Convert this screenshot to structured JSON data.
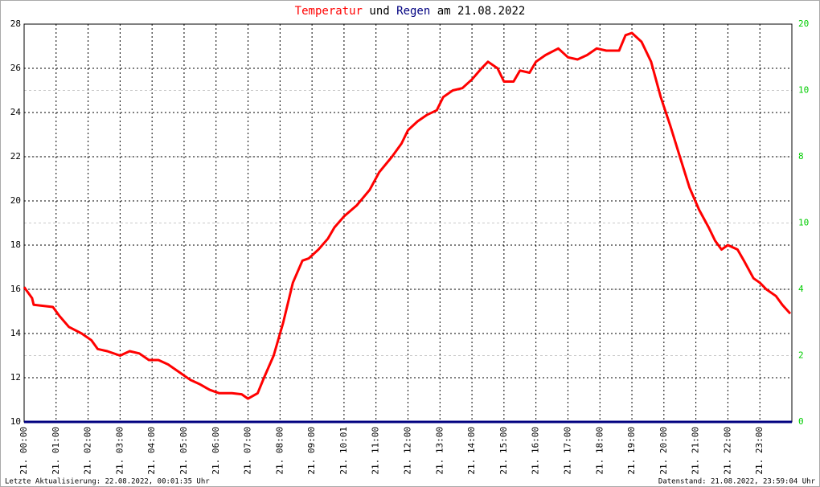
{
  "chart_data": {
    "type": "line",
    "title_parts": [
      {
        "text": "Temperatur",
        "color": "#ff0000"
      },
      {
        "text": "und",
        "color": "#000000"
      },
      {
        "text": "Regen",
        "color": "#000080"
      },
      {
        "text": "am 21.08.2022",
        "color": "#000000"
      }
    ],
    "xlim": [
      0,
      24
    ],
    "xticks": [
      {
        "value": 0,
        "label": "21. 00:00"
      },
      {
        "value": 1,
        "label": "21. 01:00"
      },
      {
        "value": 2,
        "label": "21. 02:00"
      },
      {
        "value": 3,
        "label": "21. 03:00"
      },
      {
        "value": 4,
        "label": "21. 04:00"
      },
      {
        "value": 5,
        "label": "21. 05:00"
      },
      {
        "value": 6,
        "label": "21. 06:00"
      },
      {
        "value": 7,
        "label": "21. 07:00"
      },
      {
        "value": 8,
        "label": "21. 08:00"
      },
      {
        "value": 9,
        "label": "21. 09:00"
      },
      {
        "value": 10,
        "label": "21. 10:01"
      },
      {
        "value": 11,
        "label": "21. 11:00"
      },
      {
        "value": 12,
        "label": "21. 12:00"
      },
      {
        "value": 13,
        "label": "21. 13:00"
      },
      {
        "value": 14,
        "label": "21. 14:00"
      },
      {
        "value": 15,
        "label": "21. 15:00"
      },
      {
        "value": 16,
        "label": "21. 16:00"
      },
      {
        "value": 17,
        "label": "21. 17:00"
      },
      {
        "value": 18,
        "label": "21. 18:00"
      },
      {
        "value": 19,
        "label": "21. 19:00"
      },
      {
        "value": 20,
        "label": "21. 20:00"
      },
      {
        "value": 21,
        "label": "21. 21:00"
      },
      {
        "value": 22,
        "label": "21. 22:00"
      },
      {
        "value": 23,
        "label": "21. 23:00"
      }
    ],
    "ylim": [
      10,
      28
    ],
    "yticks": [
      10,
      12,
      14,
      16,
      18,
      20,
      22,
      24,
      26,
      28
    ],
    "y2lim": [
      0,
      20
    ],
    "y2_labels": [
      "0",
      "2",
      "4",
      "10",
      "8",
      "10",
      "20"
    ],
    "y2_label_color": "#00cc00",
    "grid": true,
    "series": [
      {
        "name": "Temperatur",
        "color": "#ff0000",
        "x": [
          0,
          0.25,
          0.3,
          0.6,
          0.9,
          1.1,
          1.4,
          1.8,
          2.1,
          2.3,
          2.6,
          3.0,
          3.3,
          3.6,
          3.9,
          4.2,
          4.5,
          4.9,
          5.2,
          5.5,
          5.8,
          6.1,
          6.5,
          6.8,
          7.0,
          7.3,
          7.5,
          7.8,
          8.1,
          8.4,
          8.7,
          8.9,
          9.2,
          9.5,
          9.7,
          10.0,
          10.4,
          10.8,
          11.1,
          11.5,
          11.8,
          12.0,
          12.3,
          12.6,
          12.9,
          13.1,
          13.4,
          13.7,
          14.0,
          14.3,
          14.5,
          14.8,
          15.0,
          15.3,
          15.5,
          15.8,
          16.0,
          16.3,
          16.7,
          17.0,
          17.3,
          17.6,
          17.9,
          18.2,
          18.6,
          18.8,
          19.0,
          19.3,
          19.6,
          19.9,
          20.2,
          20.5,
          20.8,
          21.1,
          21.4,
          21.6,
          21.8,
          22.0,
          22.3,
          22.5,
          22.8,
          23.0,
          23.2,
          23.5,
          23.7,
          23.95
        ],
        "values": [
          16.1,
          15.6,
          15.3,
          15.25,
          15.2,
          14.8,
          14.3,
          14.0,
          13.7,
          13.3,
          13.2,
          13.0,
          13.2,
          13.1,
          12.8,
          12.8,
          12.6,
          12.2,
          11.9,
          11.7,
          11.45,
          11.3,
          11.3,
          11.25,
          11.05,
          11.3,
          12.0,
          13.0,
          14.5,
          16.3,
          17.3,
          17.4,
          17.8,
          18.3,
          18.8,
          19.3,
          19.8,
          20.5,
          21.3,
          22.0,
          22.6,
          23.2,
          23.6,
          23.9,
          24.1,
          24.7,
          25.0,
          25.1,
          25.5,
          26.0,
          26.3,
          26.0,
          25.4,
          25.4,
          25.9,
          25.8,
          26.3,
          26.6,
          26.9,
          26.5,
          26.4,
          26.6,
          26.9,
          26.8,
          26.8,
          27.5,
          27.6,
          27.2,
          26.3,
          24.7,
          23.4,
          22.0,
          20.6,
          19.6,
          18.8,
          18.2,
          17.8,
          18.0,
          17.8,
          17.3,
          16.5,
          16.3,
          16.0,
          15.7,
          15.3,
          14.9
        ]
      },
      {
        "name": "Regen",
        "color": "#000080",
        "axis": "y2",
        "x": [
          0,
          24
        ],
        "values": [
          0,
          0
        ]
      }
    ],
    "footer_left": "Letzte Aktualisierung: 22.08.2022, 00:01:35 Uhr",
    "footer_right": "Datenstand: 21.08.2022, 23:59:04 Uhr"
  }
}
